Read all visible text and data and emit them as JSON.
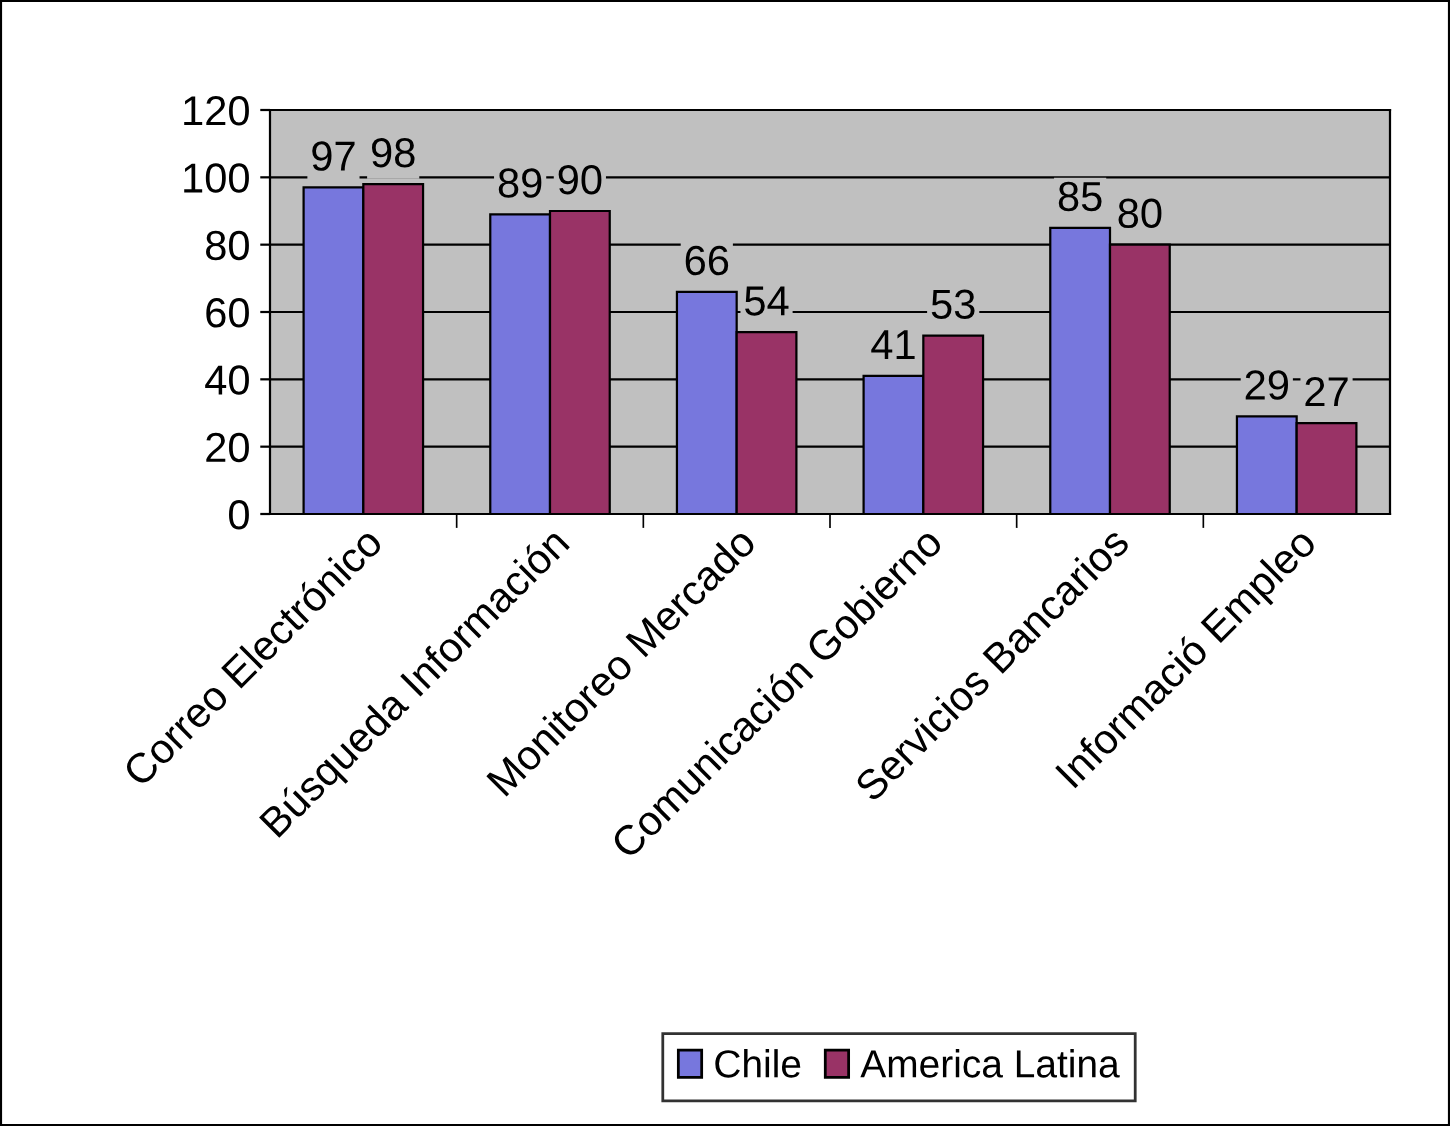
{
  "chart_data": {
    "type": "bar",
    "categories": [
      "Correo Electrónico",
      "Búsqueda Información",
      "Monitoreo Mercado",
      "Comunicación Gobierno",
      "Servicios Bancarios",
      "Informació Empleo"
    ],
    "series": [
      {
        "name": "Chile",
        "color": "#7777dd",
        "values": [
          97,
          89,
          66,
          41,
          85,
          29
        ]
      },
      {
        "name": "America Latina",
        "color": "#993366",
        "values": [
          98,
          90,
          54,
          53,
          80,
          27
        ]
      }
    ],
    "ylim": [
      0,
      120
    ],
    "yticks": [
      0,
      20,
      40,
      60,
      80,
      100,
      120
    ],
    "grid": "y",
    "legend": "bottom",
    "data_labels": true
  }
}
